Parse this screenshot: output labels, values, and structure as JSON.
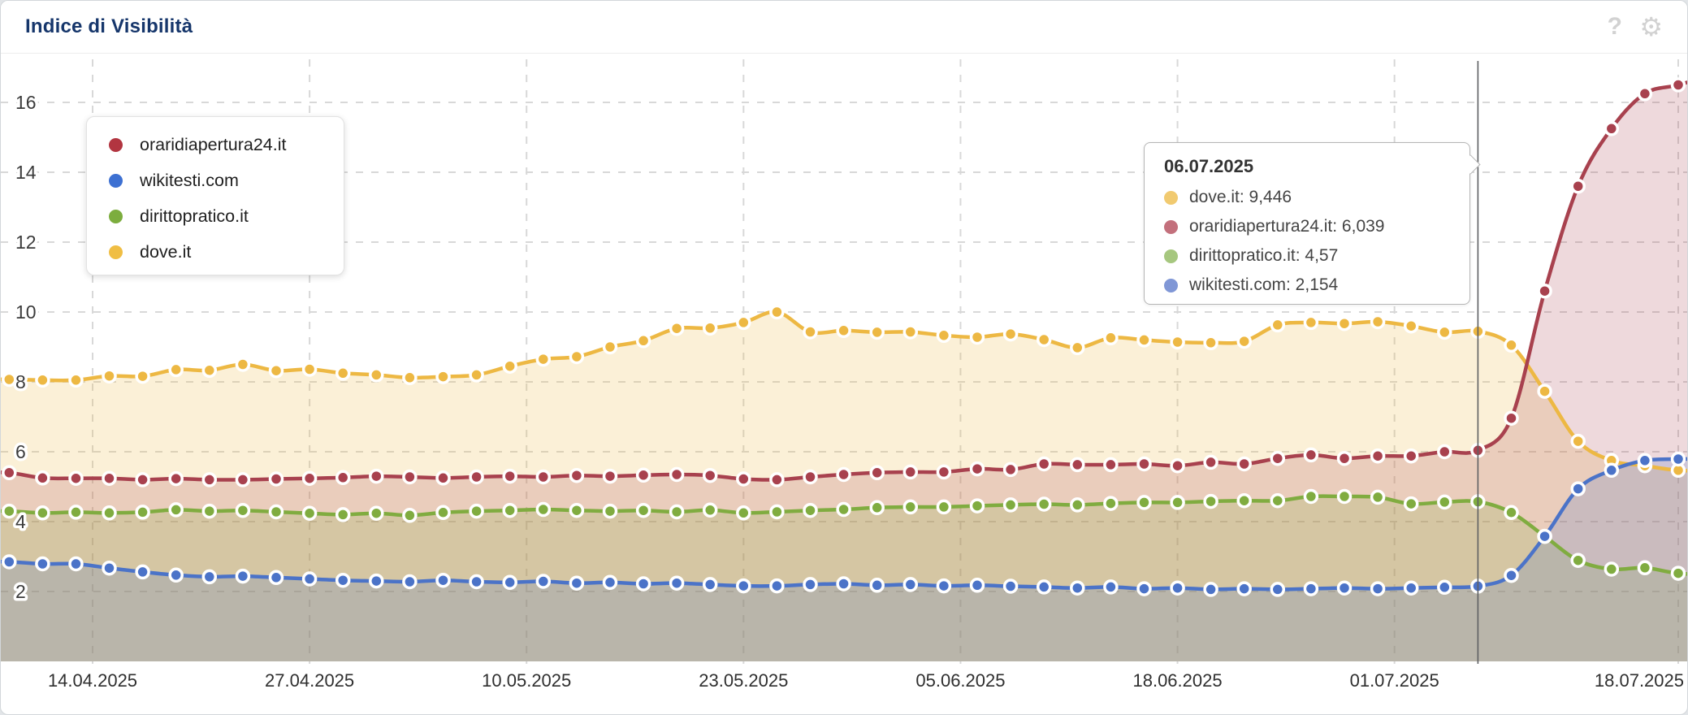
{
  "header": {
    "title": "Indice di Visibilità",
    "help_icon": "?",
    "settings_icon": "⚙"
  },
  "legend": {
    "position": "top-left",
    "items": [
      {
        "label": "oraridiapertura24.it",
        "color": "#b23540"
      },
      {
        "label": "wikitesti.com",
        "color": "#3d70d2"
      },
      {
        "label": "dirittopratico.it",
        "color": "#7cad3e"
      },
      {
        "label": "dove.it",
        "color": "#f0be44"
      }
    ]
  },
  "tooltip": {
    "date": "06.07.2025",
    "rows": [
      {
        "label": "dove.it",
        "value": "9,446",
        "color": "#f1ca70"
      },
      {
        "label": "oraridiapertura24.it",
        "value": "6,039",
        "color": "#c3707c"
      },
      {
        "label": "dirittopratico.it",
        "value": "4,57",
        "color": "#a6c77f"
      },
      {
        "label": "wikitesti.com",
        "value": "2,154",
        "color": "#8097d6"
      }
    ]
  },
  "chart_data": {
    "type": "line",
    "title": "Indice di Visibilità",
    "ylabel": "",
    "xlabel": "",
    "ylim": [
      0,
      17.3
    ],
    "y_ticks": [
      2,
      4,
      6,
      8,
      10,
      12,
      14,
      16
    ],
    "grid": "dashed",
    "x_start_date": "09.04.2025",
    "x_step_days": 2,
    "x_ticks": [
      {
        "label": "14.04.2025",
        "day": 6
      },
      {
        "label": "27.04.2025",
        "day": 19
      },
      {
        "label": "10.05.2025",
        "day": 32
      },
      {
        "label": "23.05.2025",
        "day": 45
      },
      {
        "label": "05.06.2025",
        "day": 58
      },
      {
        "label": "18.06.2025",
        "day": 71
      },
      {
        "label": "01.07.2025",
        "day": 84
      },
      {
        "label": "18.07.2025",
        "day": 101,
        "align": "right"
      }
    ],
    "hover": {
      "date": "06.07.2025",
      "day": 89
    },
    "series": [
      {
        "name": "dove.it",
        "color": "#edb843",
        "fill_opacity": 0.21,
        "start_day": 1,
        "step": 2,
        "edge_right": 5.45,
        "values": [
          8.07,
          8.05,
          8.05,
          8.17,
          8.16,
          8.35,
          8.33,
          8.5,
          8.32,
          8.36,
          8.25,
          8.2,
          8.12,
          8.15,
          8.2,
          8.45,
          8.65,
          8.72,
          9.0,
          9.18,
          9.53,
          9.54,
          9.7,
          10.0,
          9.43,
          9.47,
          9.42,
          9.43,
          9.33,
          9.28,
          9.37,
          9.21,
          8.98,
          9.26,
          9.2,
          9.14,
          9.12,
          9.16,
          9.63,
          9.7,
          9.67,
          9.72,
          9.6,
          9.42,
          9.446,
          9.05,
          7.73,
          6.3,
          5.75,
          5.6,
          5.47
        ]
      },
      {
        "name": "oraridiapertura24.it",
        "color": "#a8414e",
        "fill_opacity": 0.2,
        "start_day": 1,
        "step": 2,
        "edge_right": 16.85,
        "values": [
          5.4,
          5.25,
          5.24,
          5.24,
          5.2,
          5.23,
          5.2,
          5.2,
          5.22,
          5.24,
          5.26,
          5.3,
          5.28,
          5.25,
          5.28,
          5.3,
          5.28,
          5.32,
          5.3,
          5.33,
          5.35,
          5.32,
          5.22,
          5.2,
          5.28,
          5.35,
          5.4,
          5.42,
          5.42,
          5.51,
          5.49,
          5.65,
          5.63,
          5.63,
          5.65,
          5.6,
          5.7,
          5.65,
          5.81,
          5.91,
          5.81,
          5.88,
          5.88,
          6.0,
          6.039,
          6.96,
          10.6,
          13.6,
          15.25,
          16.25,
          16.5
        ]
      },
      {
        "name": "dirittopratico.it",
        "color": "#80ac40",
        "fill_opacity": 0.2,
        "start_day": 1,
        "step": 2,
        "edge_right": 2.48,
        "values": [
          4.3,
          4.25,
          4.27,
          4.25,
          4.27,
          4.34,
          4.3,
          4.32,
          4.28,
          4.24,
          4.2,
          4.24,
          4.18,
          4.26,
          4.3,
          4.32,
          4.35,
          4.32,
          4.3,
          4.32,
          4.28,
          4.33,
          4.25,
          4.28,
          4.32,
          4.35,
          4.4,
          4.42,
          4.42,
          4.45,
          4.48,
          4.5,
          4.48,
          4.52,
          4.55,
          4.55,
          4.58,
          4.6,
          4.6,
          4.72,
          4.72,
          4.7,
          4.51,
          4.56,
          4.57,
          4.26,
          3.58,
          2.89,
          2.64,
          2.68,
          2.52
        ]
      },
      {
        "name": "wikitesti.com",
        "color": "#4b73c8",
        "fill_opacity": 0.2,
        "start_day": 1,
        "step": 2,
        "edge_right": 5.8,
        "values": [
          2.85,
          2.79,
          2.79,
          2.67,
          2.56,
          2.47,
          2.42,
          2.44,
          2.4,
          2.36,
          2.32,
          2.3,
          2.28,
          2.32,
          2.28,
          2.26,
          2.29,
          2.24,
          2.26,
          2.22,
          2.24,
          2.2,
          2.16,
          2.16,
          2.2,
          2.22,
          2.18,
          2.2,
          2.16,
          2.18,
          2.15,
          2.13,
          2.1,
          2.13,
          2.08,
          2.1,
          2.06,
          2.08,
          2.06,
          2.08,
          2.1,
          2.08,
          2.1,
          2.12,
          2.154,
          2.46,
          3.58,
          4.94,
          5.47,
          5.75,
          5.79
        ]
      }
    ]
  }
}
